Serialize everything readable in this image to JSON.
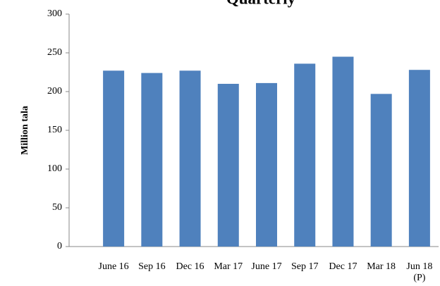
{
  "chart_data": {
    "type": "bar",
    "title": "Quarterly",
    "y_label": "Million tala",
    "categories": [
      "June 16",
      "Sep 16",
      "Dec 16",
      "Mar 17",
      "June 17",
      "Sep 17",
      "Dec 17",
      "Mar 18",
      "Jun 18\n(P)"
    ],
    "values": [
      227,
      224,
      227,
      210,
      211,
      236,
      245,
      197,
      228
    ],
    "color": "#4f81bd",
    "ylim": [
      0,
      300
    ],
    "yticks": [
      0,
      50,
      100,
      150,
      200,
      250,
      300
    ],
    "grid": false
  }
}
